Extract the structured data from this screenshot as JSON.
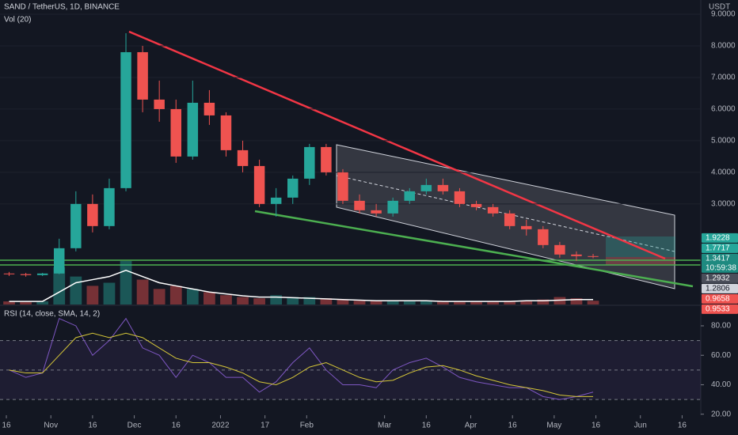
{
  "chart_data": {
    "type": "candlestick",
    "title": "SAND / TetherUS, 1D, BINANCE",
    "volume_label": "Vol (20)",
    "rsi_label": "RSI (14, close, SMA, 14, 2)",
    "currency": "USDT",
    "x": [
      0,
      6,
      12,
      18,
      24,
      30,
      36,
      42,
      48,
      54,
      60,
      66,
      72,
      78,
      84,
      90,
      96,
      102,
      108,
      114,
      120,
      126,
      132,
      138,
      144,
      150,
      156,
      162,
      168,
      174,
      180,
      186,
      192,
      198,
      204,
      210
    ],
    "open": [
      0.8,
      0.78,
      0.75,
      0.8,
      1.6,
      3.0,
      2.3,
      3.5,
      7.8,
      6.3,
      6.0,
      4.5,
      6.2,
      5.8,
      4.7,
      4.2,
      3.0,
      3.2,
      3.8,
      4.8,
      4.0,
      3.1,
      2.8,
      2.7,
      3.1,
      3.4,
      3.6,
      3.4,
      3.0,
      2.9,
      2.7,
      2.3,
      2.2,
      1.7,
      1.4,
      1.35
    ],
    "high": [
      0.85,
      0.82,
      0.82,
      1.9,
      3.4,
      3.3,
      3.8,
      8.4,
      8.0,
      6.9,
      6.3,
      6.9,
      6.6,
      5.9,
      5.0,
      4.4,
      3.5,
      3.9,
      4.9,
      4.9,
      4.1,
      3.3,
      3.0,
      3.2,
      3.5,
      3.8,
      3.8,
      3.5,
      3.1,
      3.0,
      2.8,
      2.5,
      2.3,
      1.8,
      1.5,
      1.42
    ],
    "low": [
      0.72,
      0.7,
      0.72,
      0.78,
      1.5,
      2.1,
      2.2,
      3.4,
      5.9,
      5.6,
      4.3,
      4.4,
      5.5,
      4.5,
      4.0,
      2.9,
      2.6,
      3.0,
      3.6,
      3.9,
      3.0,
      2.7,
      2.6,
      2.6,
      3.0,
      3.3,
      3.3,
      2.9,
      2.8,
      2.6,
      2.2,
      2.0,
      1.6,
      1.3,
      1.2,
      1.28
    ],
    "close": [
      0.78,
      0.75,
      0.8,
      1.6,
      3.0,
      2.3,
      3.5,
      7.8,
      6.3,
      6.0,
      4.5,
      6.2,
      5.8,
      4.7,
      4.2,
      3.0,
      3.2,
      3.8,
      4.8,
      4.0,
      3.1,
      2.8,
      2.7,
      3.1,
      3.4,
      3.6,
      3.4,
      3.0,
      2.9,
      2.7,
      2.3,
      2.2,
      1.7,
      1.4,
      1.35,
      1.34
    ],
    "volume": [
      5,
      4,
      5,
      60,
      45,
      30,
      35,
      70,
      40,
      25,
      30,
      25,
      20,
      15,
      12,
      10,
      15,
      12,
      12,
      10,
      8,
      6,
      6,
      6,
      6,
      6,
      5,
      5,
      5,
      5,
      6,
      6,
      8,
      12,
      10,
      6
    ],
    "volume_ma": [
      5,
      5,
      5,
      20,
      35,
      40,
      45,
      55,
      45,
      35,
      30,
      25,
      20,
      17,
      14,
      12,
      12,
      11,
      10,
      9,
      8,
      7,
      6,
      6,
      6,
      6,
      5,
      5,
      5,
      5,
      5,
      6,
      6,
      7,
      8,
      8
    ],
    "rsi": [
      50,
      45,
      48,
      85,
      80,
      60,
      70,
      85,
      65,
      60,
      45,
      60,
      55,
      45,
      45,
      35,
      42,
      55,
      65,
      50,
      40,
      40,
      38,
      50,
      55,
      58,
      52,
      45,
      42,
      40,
      38,
      38,
      32,
      30,
      32,
      35
    ],
    "rsi_sma": [
      50,
      48,
      48,
      60,
      72,
      75,
      72,
      75,
      72,
      65,
      58,
      55,
      55,
      52,
      48,
      42,
      40,
      45,
      52,
      55,
      50,
      45,
      42,
      43,
      48,
      52,
      53,
      50,
      46,
      43,
      40,
      38,
      36,
      33,
      32,
      32
    ],
    "up_color": "#26a69a",
    "down_color": "#ef5350",
    "rsi_color": "#7e57c2",
    "rsi_sma_color": "#d6c738",
    "volume_ma_color": "#ffffff",
    "ylim": [
      -0.18,
      9.45
    ],
    "yticks": [
      {
        "value": 3,
        "label": "3.0000"
      },
      {
        "value": 4,
        "label": "4.0000"
      },
      {
        "value": 5,
        "label": "5.0000"
      },
      {
        "value": 6,
        "label": "6.0000"
      },
      {
        "value": 7,
        "label": "7.0000"
      },
      {
        "value": 8,
        "label": "8.0000"
      },
      {
        "value": 9,
        "label": "9.0000"
      }
    ],
    "rsi_lim": [
      19.3,
      91.8
    ],
    "rsi_ticks": [
      {
        "value": 80,
        "label": "80.00"
      },
      {
        "value": 60,
        "label": "60.00"
      },
      {
        "value": 40,
        "label": "40.00"
      },
      {
        "value": 20,
        "label": "20.00"
      }
    ],
    "rsi_bands": [
      70,
      50,
      30
    ],
    "xlim": [
      0,
      252
    ],
    "xticks": [
      {
        "value": 2,
        "label": "16"
      },
      {
        "value": 18,
        "label": "Nov"
      },
      {
        "value": 33,
        "label": "16"
      },
      {
        "value": 48,
        "label": "Dec"
      },
      {
        "value": 63,
        "label": "16"
      },
      {
        "value": 79,
        "label": "2022"
      },
      {
        "value": 95,
        "label": "17"
      },
      {
        "value": 110,
        "label": "Feb"
      },
      {
        "value": 138,
        "label": "Mar"
      },
      {
        "value": 153,
        "label": "16"
      },
      {
        "value": 169,
        "label": "Apr"
      },
      {
        "value": 184,
        "label": "16"
      },
      {
        "value": 199,
        "label": "May"
      },
      {
        "value": 214,
        "label": "16"
      },
      {
        "value": 230,
        "label": "Jun"
      },
      {
        "value": 245,
        "label": "16"
      }
    ],
    "price_labels": [
      {
        "value": 1.9228,
        "label": "1.9228",
        "color": "#26a69a"
      },
      {
        "value": 1.7717,
        "label": "1.7717",
        "color": "#26a69a"
      },
      {
        "value": 1.3417,
        "label": "1.3417",
        "color": "#1e8a80"
      },
      {
        "value": 1.2932,
        "label": "1.2932",
        "color": "#4a4e5a"
      },
      {
        "value": 1.2806,
        "label": "1.2806",
        "color": "#d1d4dc"
      },
      {
        "value": 0.9658,
        "label": "0.9658",
        "color": "#ef5350"
      },
      {
        "value": 0.9533,
        "label": "0.9533",
        "color": "#ef5350"
      }
    ],
    "countdown": "10:59:38"
  }
}
